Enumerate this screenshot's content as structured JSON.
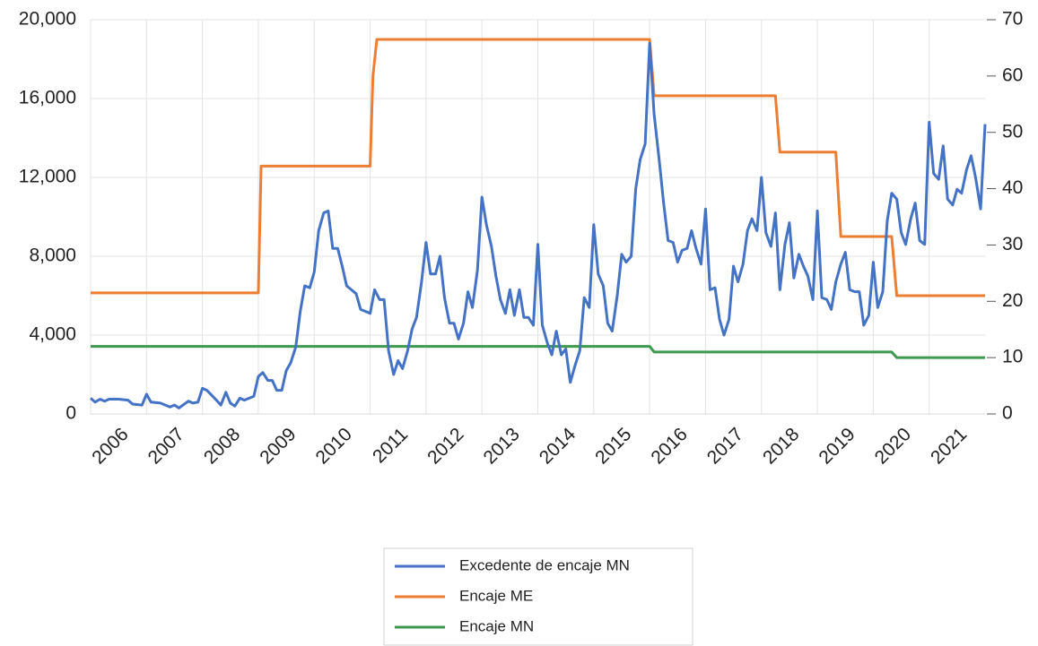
{
  "chart_data": {
    "type": "line",
    "xlim": [
      2006,
      2022
    ],
    "xticks": [
      2006,
      2007,
      2008,
      2009,
      2010,
      2011,
      2012,
      2013,
      2014,
      2015,
      2016,
      2017,
      2018,
      2019,
      2020,
      2021
    ],
    "ylim": [
      0,
      20000
    ],
    "yticks": [
      {
        "value": 0,
        "label": "0"
      },
      {
        "value": 4000,
        "label": "4,000"
      },
      {
        "value": 8000,
        "label": "8,000"
      },
      {
        "value": 12000,
        "label": "12,000"
      },
      {
        "value": 16000,
        "label": "16,000"
      },
      {
        "value": 20000,
        "label": "20,000"
      }
    ],
    "y2lim": [
      0,
      70
    ],
    "y2ticks": [
      0,
      10,
      20,
      30,
      40,
      50,
      60,
      70
    ],
    "grid": true,
    "legend": "bottom",
    "series": [
      {
        "name": "Excedente de encaje MN",
        "color": "#4472c4",
        "x": [
          2006.0,
          2006.08,
          2006.17,
          2006.25,
          2006.33,
          2006.5,
          2006.67,
          2006.75,
          2006.92,
          2007.0,
          2007.08,
          2007.25,
          2007.42,
          2007.5,
          2007.58,
          2007.75,
          2007.83,
          2007.92,
          2008.0,
          2008.08,
          2008.25,
          2008.33,
          2008.42,
          2008.5,
          2008.58,
          2008.67,
          2008.75,
          2008.92,
          2009.0,
          2009.08,
          2009.17,
          2009.25,
          2009.33,
          2009.42,
          2009.5,
          2009.58,
          2009.67,
          2009.75,
          2009.83,
          2009.92,
          2010.0,
          2010.08,
          2010.17,
          2010.25,
          2010.33,
          2010.42,
          2010.5,
          2010.58,
          2010.75,
          2010.83,
          2010.92,
          2011.0,
          2011.08,
          2011.17,
          2011.25,
          2011.33,
          2011.42,
          2011.5,
          2011.58,
          2011.67,
          2011.75,
          2011.83,
          2011.92,
          2012.0,
          2012.08,
          2012.17,
          2012.25,
          2012.33,
          2012.42,
          2012.5,
          2012.58,
          2012.67,
          2012.75,
          2012.83,
          2012.92,
          2013.0,
          2013.08,
          2013.17,
          2013.25,
          2013.33,
          2013.42,
          2013.5,
          2013.58,
          2013.67,
          2013.75,
          2013.83,
          2013.92,
          2014.0,
          2014.08,
          2014.17,
          2014.25,
          2014.33,
          2014.42,
          2014.5,
          2014.58,
          2014.67,
          2014.75,
          2014.83,
          2014.92,
          2015.0,
          2015.08,
          2015.17,
          2015.25,
          2015.33,
          2015.42,
          2015.5,
          2015.58,
          2015.67,
          2015.75,
          2015.83,
          2015.92,
          2016.0,
          2016.08,
          2016.17,
          2016.25,
          2016.33,
          2016.42,
          2016.5,
          2016.58,
          2016.67,
          2016.75,
          2016.83,
          2016.92,
          2017.0,
          2017.08,
          2017.17,
          2017.25,
          2017.33,
          2017.42,
          2017.5,
          2017.58,
          2017.67,
          2017.75,
          2017.83,
          2017.92,
          2018.0,
          2018.08,
          2018.17,
          2018.25,
          2018.33,
          2018.42,
          2018.5,
          2018.58,
          2018.67,
          2018.75,
          2018.83,
          2018.92,
          2019.0,
          2019.08,
          2019.17,
          2019.25,
          2019.33,
          2019.42,
          2019.5,
          2019.58,
          2019.67,
          2019.75,
          2019.83,
          2019.92,
          2020.0,
          2020.08,
          2020.17,
          2020.25,
          2020.33,
          2020.42,
          2020.5,
          2020.58,
          2020.67,
          2020.75,
          2020.83,
          2020.92,
          2021.0,
          2021.08,
          2021.17,
          2021.25,
          2021.33,
          2021.42,
          2021.5,
          2021.58,
          2021.67,
          2021.75,
          2021.83,
          2021.92,
          2022.0
        ],
        "values": [
          800,
          600,
          750,
          650,
          750,
          750,
          700,
          500,
          450,
          1000,
          600,
          550,
          350,
          450,
          300,
          650,
          550,
          600,
          1300,
          1200,
          700,
          450,
          1100,
          550,
          400,
          800,
          700,
          900,
          1900,
          2100,
          1700,
          1700,
          1200,
          1200,
          2200,
          2600,
          3400,
          5200,
          6500,
          6400,
          7200,
          9300,
          10200,
          10300,
          8400,
          8400,
          7500,
          6500,
          6100,
          5300,
          5200,
          5100,
          6300,
          5800,
          5800,
          3200,
          2000,
          2700,
          2300,
          3200,
          4300,
          4900,
          6700,
          8700,
          7100,
          7100,
          8000,
          5900,
          4600,
          4600,
          3800,
          4600,
          6200,
          5400,
          7300,
          11000,
          9600,
          8500,
          7000,
          5800,
          5100,
          6300,
          5000,
          6300,
          4900,
          4900,
          4500,
          8600,
          4500,
          3600,
          3000,
          4200,
          3000,
          3300,
          1600,
          2500,
          3200,
          5900,
          5400,
          9600,
          7100,
          6500,
          4600,
          4200,
          6000,
          8100,
          7700,
          8000,
          11400,
          12900,
          13700,
          18800,
          15200,
          12900,
          10700,
          8800,
          8700,
          7700,
          8300,
          8400,
          9300,
          8400,
          7600,
          10400,
          6300,
          6400,
          4800,
          4000,
          4800,
          7500,
          6700,
          7600,
          9300,
          9900,
          9300,
          12000,
          9200,
          8500,
          10200,
          6300,
          8600,
          9700,
          6900,
          8100,
          7500,
          7000,
          5800,
          10300,
          5900,
          5800,
          5300,
          6700,
          7600,
          8200,
          6300,
          6200,
          6200,
          4500,
          5000,
          7700,
          5400,
          6200,
          9800,
          11200,
          10900,
          9200,
          8600,
          9900,
          10700,
          8800,
          8600,
          14800,
          12200,
          11900,
          13600,
          10900,
          10600,
          11400,
          11200,
          12400,
          13100,
          12000,
          10400,
          14700
        ]
      },
      {
        "name": "Encaje ME",
        "color": "#ed7d31",
        "axis": "y2",
        "x": [
          2006,
          2009.0,
          2009.05,
          2011.0,
          2011.05,
          2011.12,
          2016.0,
          2016.08,
          2018.25,
          2018.33,
          2019.33,
          2019.42,
          2020.33,
          2020.42,
          2022
        ],
        "values": [
          21.5,
          21.5,
          44,
          44,
          60,
          66.5,
          66.5,
          56.5,
          56.5,
          46.5,
          46.5,
          31.5,
          31.5,
          21,
          21
        ]
      },
      {
        "name": "Encaje MN",
        "color": "#3d9a4e",
        "axis": "y2",
        "x": [
          2006,
          2016.0,
          2016.08,
          2020.33,
          2020.42,
          2022
        ],
        "values": [
          12,
          12,
          11,
          11,
          10,
          10
        ]
      }
    ]
  }
}
